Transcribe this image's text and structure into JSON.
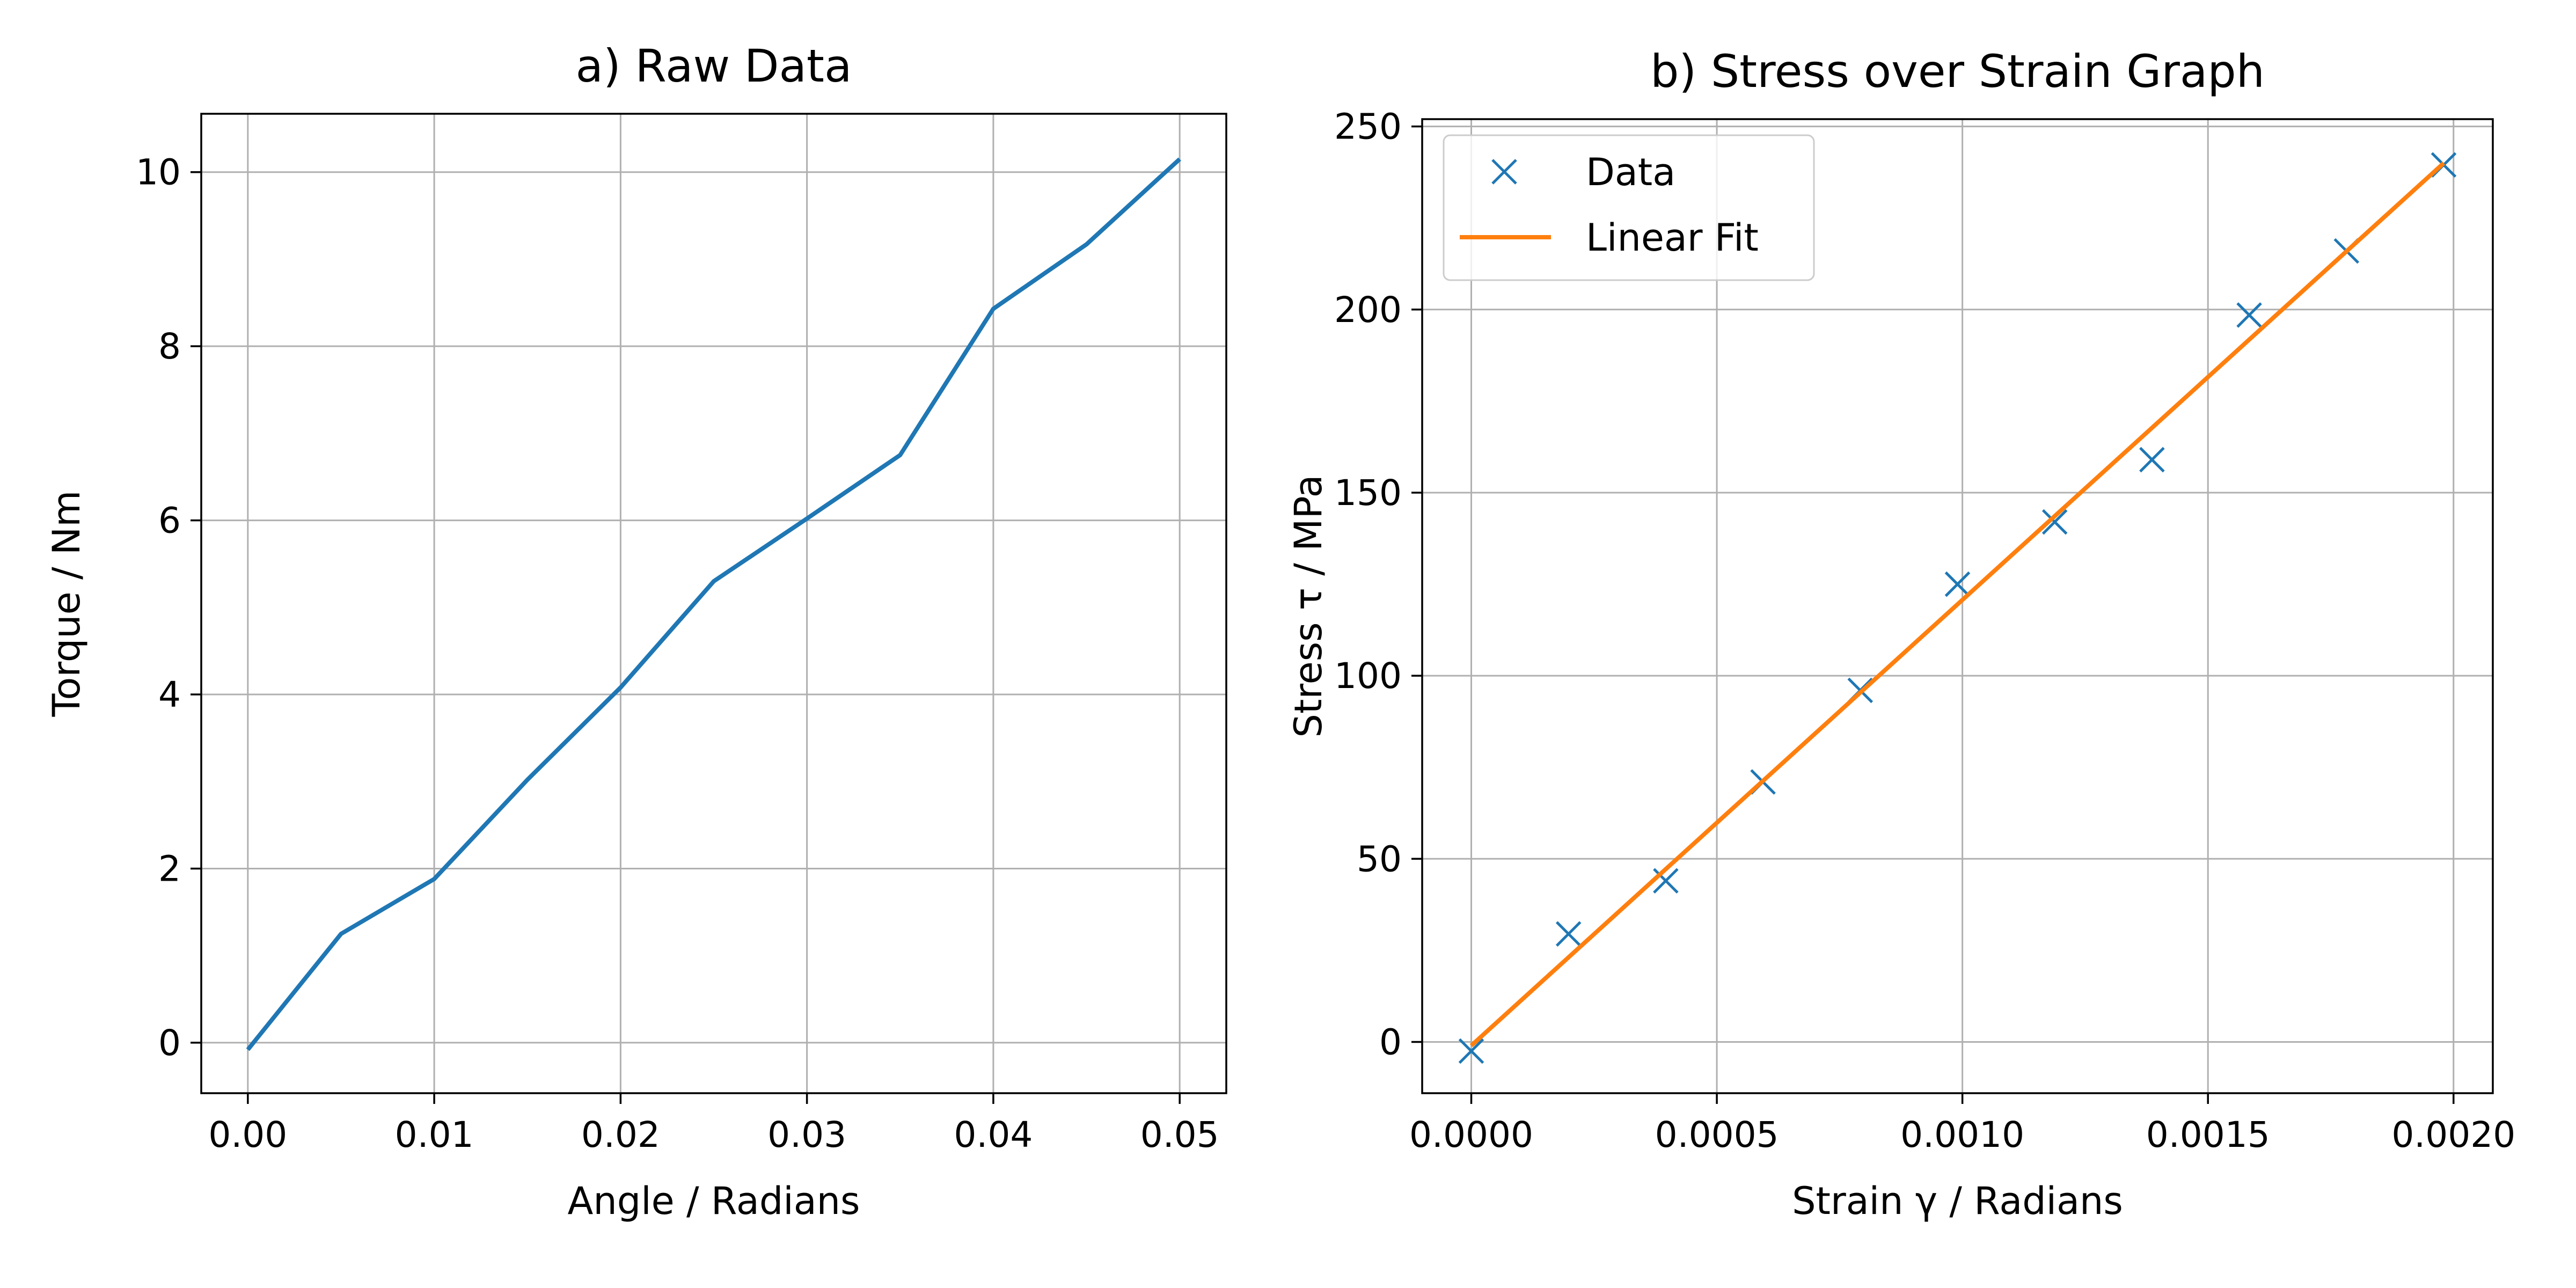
{
  "chart_data": [
    {
      "type": "line",
      "title": "a) Raw Data",
      "xlabel": "Angle / Radians",
      "ylabel": "Torque / Nm",
      "xlim": [
        -0.0025,
        0.0525
      ],
      "ylim": [
        -0.58,
        10.67
      ],
      "xticks": [
        0.0,
        0.01,
        0.02,
        0.03,
        0.04,
        0.05
      ],
      "xtick_labels": [
        "0.00",
        "0.01",
        "0.02",
        "0.03",
        "0.04",
        "0.05"
      ],
      "yticks": [
        0,
        2,
        4,
        6,
        8,
        10
      ],
      "ytick_labels": [
        "0",
        "2",
        "4",
        "6",
        "8",
        "10"
      ],
      "grid": true,
      "series": [
        {
          "color": "#1f77b4",
          "x": [
            0.0,
            0.005,
            0.01,
            0.015,
            0.02,
            0.025,
            0.03,
            0.035,
            0.04,
            0.045,
            0.05
          ],
          "y": [
            -0.08,
            1.25,
            1.88,
            3.02,
            4.08,
            5.3,
            6.02,
            6.75,
            8.43,
            9.17,
            10.15
          ]
        }
      ]
    },
    {
      "type": "scatter",
      "title": "b) Stress over Strain Graph",
      "xlabel": "Strain γ / Radians",
      "ylabel": "Stress τ / MPa",
      "xlim": [
        -0.0001,
        0.00208
      ],
      "ylim": [
        -14,
        252
      ],
      "xticks": [
        0.0,
        0.0005,
        0.001,
        0.0015,
        0.002
      ],
      "xtick_labels": [
        "0.0000",
        "0.0005",
        "0.0010",
        "0.0015",
        "0.0020"
      ],
      "yticks": [
        0,
        50,
        100,
        150,
        200,
        250
      ],
      "ytick_labels": [
        "0",
        "50",
        "100",
        "150",
        "200",
        "250"
      ],
      "grid": true,
      "legend_position": "upper-left",
      "series": [
        {
          "name": "Data",
          "kind": "markers",
          "marker": "x",
          "color": "#1f77b4",
          "x": [
            0.0,
            0.000198,
            0.000396,
            0.000594,
            0.000792,
            0.00099,
            0.001188,
            0.001386,
            0.001584,
            0.001782,
            0.00198
          ],
          "y": [
            -2.5,
            29.5,
            44,
            71,
            96,
            125,
            142,
            159,
            198.5,
            216,
            239.5
          ]
        },
        {
          "name": "Linear Fit",
          "kind": "line",
          "color": "#ff7f0e",
          "x": [
            0.0,
            0.00198
          ],
          "y": [
            -1,
            240
          ]
        }
      ]
    }
  ]
}
